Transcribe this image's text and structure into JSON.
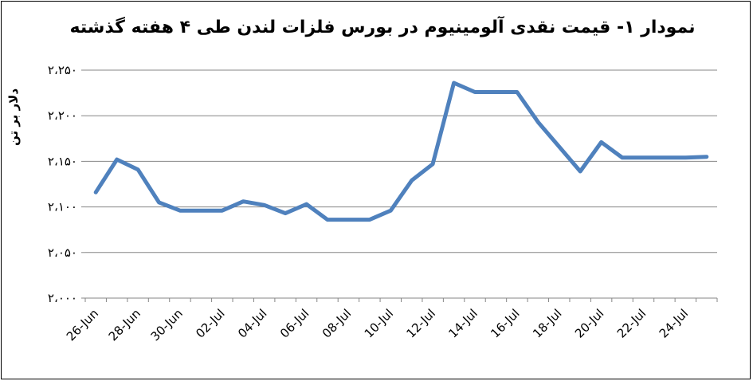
{
  "chart_data": {
    "type": "line",
    "title": "نمودار ۱- قیمت نقدی آلومینیوم در بورس فلزات لندن طی ۴ هفته گذشته",
    "xlabel": "",
    "ylabel": "دلار بر تن",
    "ylim": [
      2000,
      2250
    ],
    "yticks": [
      2000,
      2050,
      2100,
      2150,
      2200,
      2250
    ],
    "ytick_labels": [
      "۲،۰۰۰",
      "۲،۰۵۰",
      "۲،۱۰۰",
      "۲،۱۵۰",
      "۲،۲۰۰",
      "۲،۲۵۰"
    ],
    "xtick_labels": [
      "26-Jun",
      "28-Jun",
      "30-Jun",
      "02-Jul",
      "04-Jul",
      "06-Jul",
      "08-Jul",
      "10-Jul",
      "12-Jul",
      "14-Jul",
      "16-Jul",
      "18-Jul",
      "20-Jul",
      "22-Jul",
      "24-Jul"
    ],
    "grid": true,
    "line_color": "#4F81BD",
    "series": [
      {
        "name": "",
        "x": [
          "26-Jun",
          "27-Jun",
          "28-Jun",
          "29-Jun",
          "30-Jun",
          "01-Jul",
          "02-Jul",
          "03-Jul",
          "04-Jul",
          "05-Jul",
          "06-Jul",
          "07-Jul",
          "08-Jul",
          "09-Jul",
          "10-Jul",
          "11-Jul",
          "12-Jul",
          "13-Jul",
          "14-Jul",
          "15-Jul",
          "16-Jul",
          "17-Jul",
          "18-Jul",
          "19-Jul",
          "20-Jul",
          "21-Jul",
          "22-Jul",
          "23-Jul",
          "24-Jul",
          "25-Jul"
        ],
        "values": [
          2116,
          2152,
          2141,
          2105,
          2096,
          2096,
          2096,
          2106,
          2102,
          2093,
          2103,
          2086,
          2086,
          2086,
          2096,
          2129,
          2147,
          2236,
          2226,
          2226,
          2226,
          2193,
          2166,
          2139,
          2171,
          2154,
          2154,
          2154,
          2154,
          2155
        ]
      }
    ]
  }
}
